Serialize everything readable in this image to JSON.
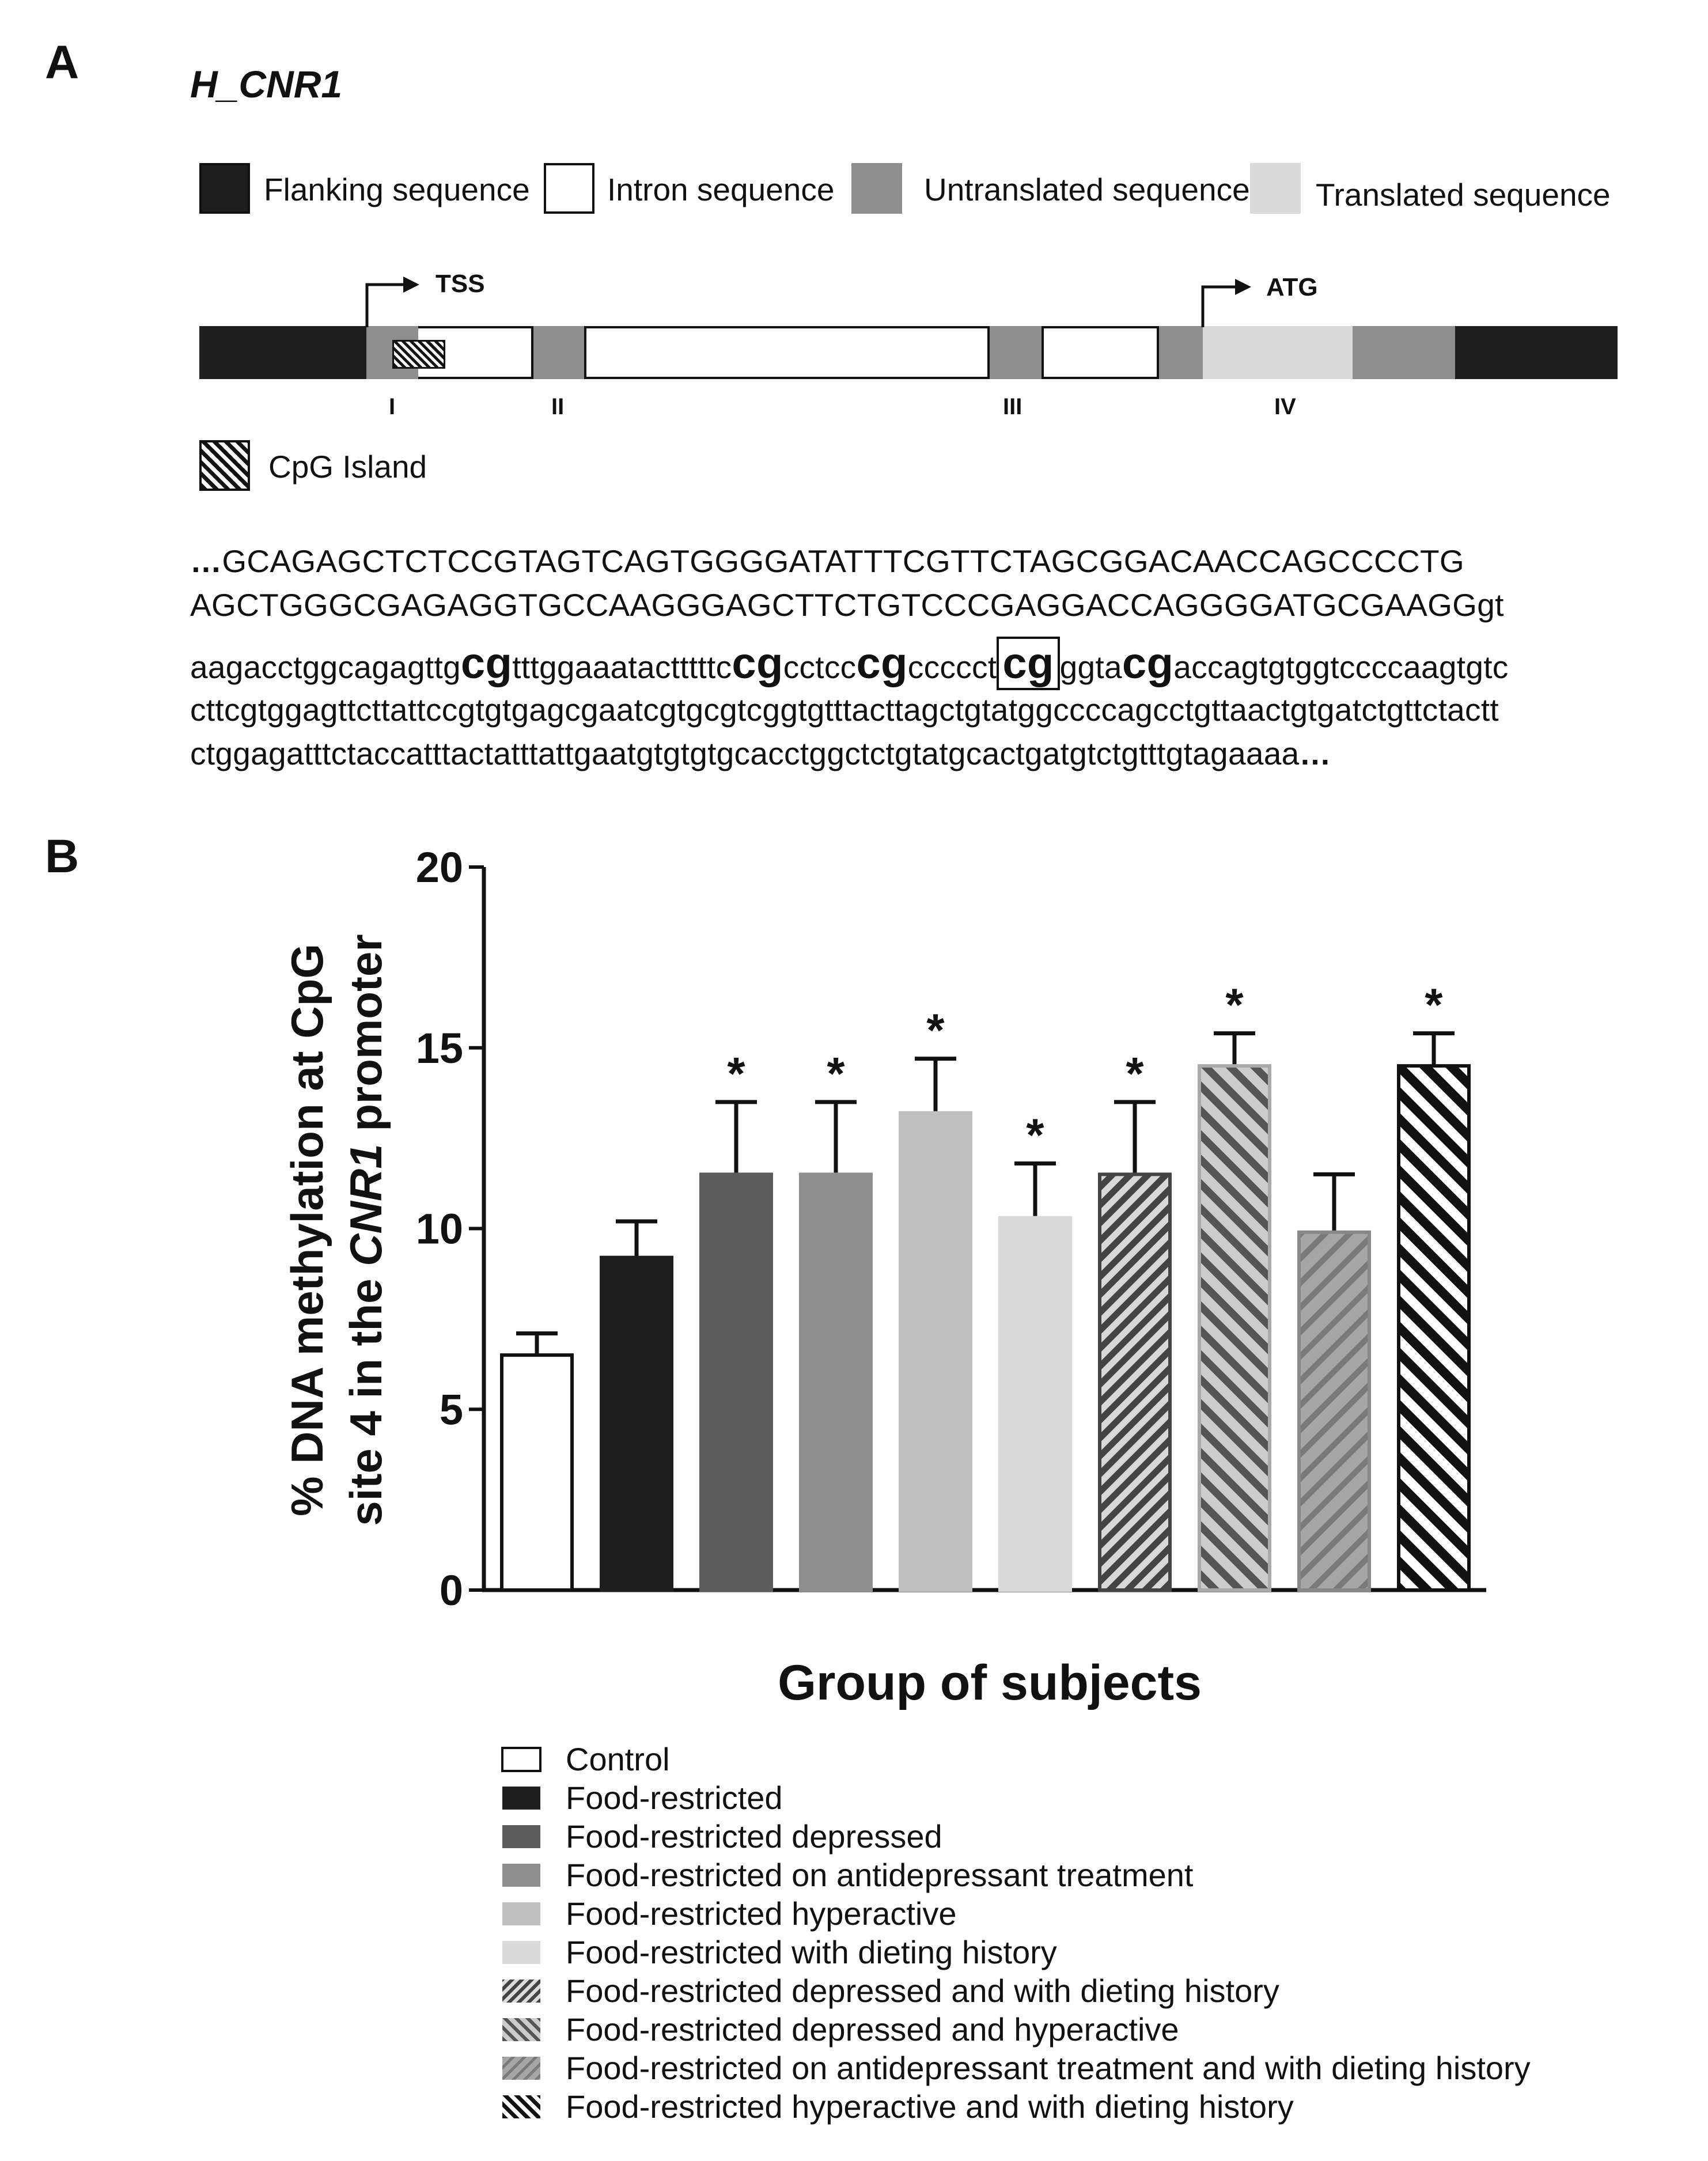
{
  "panel_a": {
    "letter": "A",
    "gene": "H_CNR1",
    "legend": [
      {
        "label": "Flanking sequence",
        "color": "#1e1e1e"
      },
      {
        "label": "Intron sequence",
        "color": "#ffffff"
      },
      {
        "label": "Untranslated sequence",
        "color": "#8e8e8e"
      },
      {
        "label": "Translated  sequence",
        "color": "#dadada"
      }
    ],
    "tss_label": "TSS",
    "atg_label": "ATG",
    "exons": [
      "I",
      "II",
      "III",
      "IV"
    ],
    "cpg_label": "CpG Island",
    "sequence": {
      "line1": "GCAGAGCTCTCCGTAGTCAGTGGGGATATTTCGTTCTAGCGGACAACCAGCCCCTG",
      "line2": "AGCTGGGCGAGAGGTGCCAAGGGAGCTTCTGTCCCGAGGACCAGGGGATGCGAAGGgt",
      "line3_parts": [
        "aagacctggcagagttg",
        "cg",
        "tttggaaatactttttc",
        "cg",
        "cctcc",
        "cg",
        "ccccct",
        "cg",
        "ggta",
        "cg",
        "accagtgtggtccccaagtgtc"
      ],
      "line4": "cttcgtggagttcttattccgtgtgagcgaatcgtgcgtcggtgtttacttagctgtatggccccagcctgttaactgtgatctgttctactt",
      "line5": "ctggagatttctaccatttactatttattgaatgtgtgtgcacctggctctgtatgcactgatgtctgtttgtagaaaa",
      "ellipsis": "…"
    }
  },
  "panel_b": {
    "letter": "B",
    "ylabel_line1": "% DNA methylation at CpG",
    "ylabel_line2_pre": "site 4 in the ",
    "ylabel_line2_italic": "CNR1",
    "ylabel_line2_post": " promoter",
    "xlabel": "Group of subjects",
    "star": "*"
  },
  "chart_data": {
    "type": "bar",
    "title": "",
    "xlabel": "Group of subjects",
    "ylabel": "% DNA methylation at CpG site 4 in the CNR1 promoter",
    "ylim": [
      0,
      20
    ],
    "yticks": [
      0,
      5,
      10,
      15,
      20
    ],
    "grid": false,
    "legend_position": "bottom",
    "categories": [
      "Control",
      "Food-restricted",
      "Food-restricted depressed",
      "Food-restricted on antidepressant treatment",
      "Food-restricted hyperactive",
      "Food-restricted with dieting history",
      "Food-restricted depressed and with dieting history",
      "Food-restricted depressed and hyperactive",
      "Food-restricted on antidepressant treatment and with dieting history",
      "Food-restricted hyperactive and with dieting history"
    ],
    "values": [
      6.5,
      9.2,
      11.5,
      11.5,
      13.2,
      10.3,
      11.5,
      14.5,
      9.9,
      14.5
    ],
    "errors": [
      0.6,
      1.0,
      2.0,
      2.0,
      1.5,
      1.5,
      2.0,
      0.9,
      1.6,
      0.9
    ],
    "significant": [
      false,
      false,
      true,
      true,
      true,
      true,
      true,
      true,
      false,
      true
    ],
    "fills": [
      {
        "color": "#ffffff",
        "pattern": "none",
        "stripe": "#111111",
        "border": "#111111"
      },
      {
        "color": "#1e1e1e",
        "pattern": "none",
        "stripe": "#1e1e1e",
        "border": "#1e1e1e"
      },
      {
        "color": "#5c5c5c",
        "pattern": "none",
        "stripe": "#5c5c5c",
        "border": "#5c5c5c"
      },
      {
        "color": "#8f8f8f",
        "pattern": "none",
        "stripe": "#8f8f8f",
        "border": "#8f8f8f"
      },
      {
        "color": "#bfbfbf",
        "pattern": "none",
        "stripe": "#bfbfbf",
        "border": "#bfbfbf"
      },
      {
        "color": "#dadada",
        "pattern": "none",
        "stripe": "#dadada",
        "border": "#dadada"
      },
      {
        "color": "#d8d8d8",
        "pattern": "forward",
        "stripe": "#444444",
        "border": "#444444"
      },
      {
        "color": "#cccccc",
        "pattern": "back",
        "stripe": "#555555",
        "border": "#aaaaaa"
      },
      {
        "color": "#a6a6a6",
        "pattern": "forward",
        "stripe": "#7a7a7a",
        "border": "#888888"
      },
      {
        "color": "#ffffff",
        "pattern": "back",
        "stripe": "#111111",
        "border": "#111111"
      }
    ]
  }
}
